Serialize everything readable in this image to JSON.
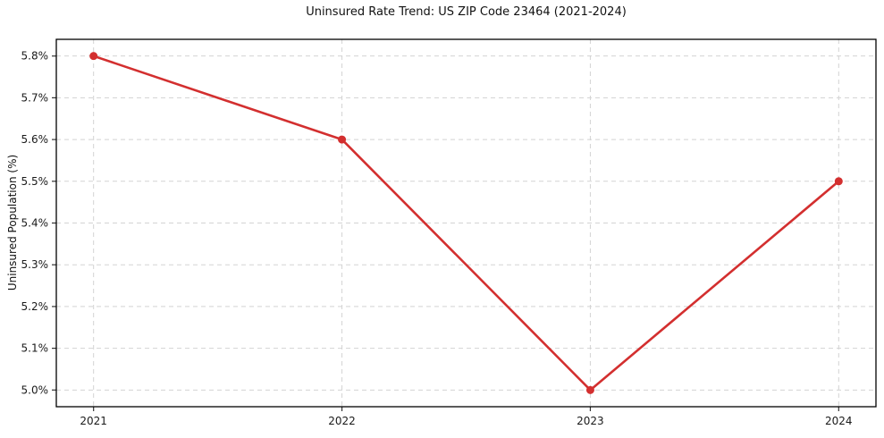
{
  "chart_data": {
    "type": "line",
    "title": "Uninsured Rate Trend: US ZIP Code 23464 (2021-2024)",
    "xlabel": "",
    "ylabel": "Uninsured Population (%)",
    "x": [
      2021,
      2022,
      2023,
      2024
    ],
    "values": [
      5.8,
      5.6,
      5.0,
      5.5
    ],
    "xtick_labels": [
      "2021",
      "2022",
      "2023",
      "2024"
    ],
    "yticks": [
      5.0,
      5.1,
      5.2,
      5.3,
      5.4,
      5.5,
      5.6,
      5.7,
      5.8
    ],
    "ytick_labels": [
      "5.0%",
      "5.1%",
      "5.2%",
      "5.3%",
      "5.4%",
      "5.5%",
      "5.6%",
      "5.7%",
      "5.8%"
    ],
    "xlim": [
      2020.85,
      2024.15
    ],
    "ylim": [
      4.96,
      5.84
    ],
    "grid": true,
    "grid_style": "dashed",
    "legend": "none",
    "line_color": "#d32f2f",
    "marker": "circle",
    "marker_color": "#d32f2f"
  }
}
